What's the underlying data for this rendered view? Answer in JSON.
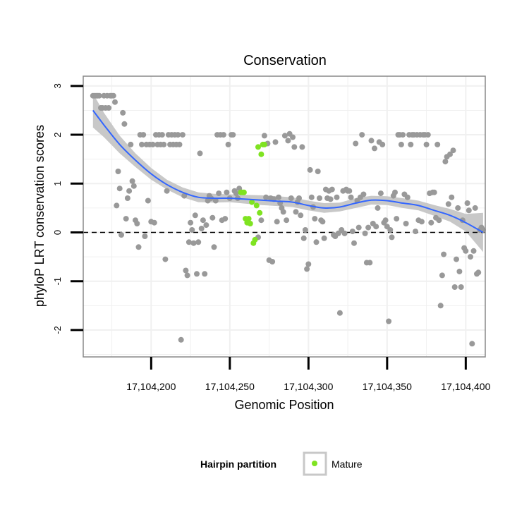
{
  "chart_data": {
    "type": "scatter",
    "title": "Conservation",
    "xlabel": "Genomic Position",
    "ylabel": "phyloP LRT conservation scores",
    "xlim": [
      17104156.8,
      17104412.4
    ],
    "ylim": [
      -2.55,
      3.2
    ],
    "x_ticks": [
      17104200,
      17104250,
      17104300,
      17104350,
      17104400
    ],
    "x_tick_labels": [
      "17,104,200",
      "17,104,250",
      "17,104,300",
      "17,104,350",
      "17,104,400"
    ],
    "y_ticks": [
      -2,
      -1,
      0,
      1,
      2,
      3
    ],
    "y_tick_labels": [
      "-2",
      "-1",
      "0",
      "1",
      "2",
      "3"
    ],
    "reference_line": {
      "y": 0,
      "style": "dashed"
    },
    "legend": {
      "title": "Hairpin partition",
      "position": "bottom",
      "entries": [
        {
          "label": "Mature",
          "color": "#7FE321"
        }
      ]
    },
    "colors": {
      "other": "#999999",
      "mature": "#7FE321",
      "smooth": "#3366FF",
      "ribbon": "#C8C8C8",
      "panel_grid": "#F0F0F0",
      "frame": "#888888"
    },
    "series": [
      {
        "name": "Other",
        "color": "#999999",
        "points": [
          [
            17104163,
            2.8
          ],
          [
            17104164,
            2.8
          ],
          [
            17104165,
            2.8
          ],
          [
            17104166,
            2.8
          ],
          [
            17104167,
            2.8
          ],
          [
            17104168,
            2.55
          ],
          [
            17104169,
            2.55
          ],
          [
            17104170,
            2.8
          ],
          [
            17104171,
            2.55
          ],
          [
            17104172,
            2.8
          ],
          [
            17104173,
            2.55
          ],
          [
            17104174,
            2.8
          ],
          [
            17104175,
            2.8
          ],
          [
            17104176,
            2.8
          ],
          [
            17104177,
            2.67
          ],
          [
            17104178,
            0.55
          ],
          [
            17104179,
            1.25
          ],
          [
            17104180,
            0.9
          ],
          [
            17104181,
            -0.05
          ],
          [
            17104182,
            2.45
          ],
          [
            17104183,
            2.22
          ],
          [
            17104184,
            0.28
          ],
          [
            17104185,
            0.7
          ],
          [
            17104186,
            0.85
          ],
          [
            17104187,
            1.8
          ],
          [
            17104188,
            1.05
          ],
          [
            17104189,
            0.95
          ],
          [
            17104190,
            0.25
          ],
          [
            17104191,
            0.18
          ],
          [
            17104192,
            -0.3
          ],
          [
            17104193,
            2.0
          ],
          [
            17104194,
            1.8
          ],
          [
            17104195,
            2.0
          ],
          [
            17104196,
            -0.08
          ],
          [
            17104197,
            1.8
          ],
          [
            17104198,
            0.65
          ],
          [
            17104199,
            1.8
          ],
          [
            17104200,
            0.22
          ],
          [
            17104201,
            1.8
          ],
          [
            17104202,
            0.2
          ],
          [
            17104203,
            2.0
          ],
          [
            17104204,
            1.8
          ],
          [
            17104205,
            2.0
          ],
          [
            17104206,
            1.8
          ],
          [
            17104207,
            2.0
          ],
          [
            17104208,
            1.8
          ],
          [
            17104209,
            -0.55
          ],
          [
            17104210,
            0.85
          ],
          [
            17104211,
            2.0
          ],
          [
            17104212,
            1.8
          ],
          [
            17104213,
            2.0
          ],
          [
            17104214,
            1.8
          ],
          [
            17104215,
            2.0
          ],
          [
            17104216,
            1.8
          ],
          [
            17104217,
            2.0
          ],
          [
            17104218,
            1.8
          ],
          [
            17104219,
            -2.2
          ],
          [
            17104220,
            2.0
          ],
          [
            17104221,
            0.75
          ],
          [
            17104222,
            -0.78
          ],
          [
            17104223,
            -0.88
          ],
          [
            17104224,
            -0.2
          ],
          [
            17104225,
            0.2
          ],
          [
            17104226,
            0.05
          ],
          [
            17104227,
            -0.22
          ],
          [
            17104228,
            0.35
          ],
          [
            17104229,
            -0.85
          ],
          [
            17104230,
            -0.2
          ],
          [
            17104231,
            1.62
          ],
          [
            17104232,
            0.08
          ],
          [
            17104233,
            0.25
          ],
          [
            17104234,
            -0.85
          ],
          [
            17104235,
            0.15
          ],
          [
            17104236,
            0.65
          ],
          [
            17104237,
            0.75
          ],
          [
            17104238,
            0.7
          ],
          [
            17104239,
            0.3
          ],
          [
            17104240,
            -0.3
          ],
          [
            17104241,
            0.65
          ],
          [
            17104242,
            2.0
          ],
          [
            17104243,
            0.8
          ],
          [
            17104244,
            2.0
          ],
          [
            17104245,
            0.25
          ],
          [
            17104246,
            2.0
          ],
          [
            17104247,
            0.28
          ],
          [
            17104248,
            0.82
          ],
          [
            17104249,
            1.8
          ],
          [
            17104250,
            0.7
          ],
          [
            17104251,
            2.0
          ],
          [
            17104252,
            2.0
          ],
          [
            17104253,
            0.85
          ],
          [
            17104254,
            0.8
          ],
          [
            17104255,
            0.7
          ],
          [
            17104256,
            0.9
          ],
          [
            17104268,
            -0.1
          ],
          [
            17104270,
            0.25
          ],
          [
            17104272,
            1.98
          ],
          [
            17104273,
            0.72
          ],
          [
            17104274,
            1.82
          ],
          [
            17104275,
            -0.57
          ],
          [
            17104276,
            0.7
          ],
          [
            17104277,
            -0.6
          ],
          [
            17104278,
            0.68
          ],
          [
            17104279,
            1.85
          ],
          [
            17104280,
            0.22
          ],
          [
            17104281,
            0.72
          ],
          [
            17104282,
            0.6
          ],
          [
            17104283,
            0.5
          ],
          [
            17104284,
            0.42
          ],
          [
            17104285,
            1.98
          ],
          [
            17104286,
            0.25
          ],
          [
            17104287,
            1.88
          ],
          [
            17104288,
            2.02
          ],
          [
            17104289,
            0.7
          ],
          [
            17104290,
            1.95
          ],
          [
            17104291,
            1.75
          ],
          [
            17104292,
            0.42
          ],
          [
            17104293,
            0.62
          ],
          [
            17104294,
            0.7
          ],
          [
            17104295,
            0.35
          ],
          [
            17104296,
            1.75
          ],
          [
            17104297,
            -0.12
          ],
          [
            17104298,
            0.05
          ],
          [
            17104299,
            -0.75
          ],
          [
            17104300,
            -0.65
          ],
          [
            17104301,
            1.28
          ],
          [
            17104302,
            0.72
          ],
          [
            17104303,
            0.52
          ],
          [
            17104304,
            0.28
          ],
          [
            17104305,
            -0.2
          ],
          [
            17104306,
            1.25
          ],
          [
            17104307,
            0.7
          ],
          [
            17104308,
            0.25
          ],
          [
            17104309,
            0.22
          ],
          [
            17104310,
            -0.12
          ],
          [
            17104311,
            0.88
          ],
          [
            17104312,
            0.7
          ],
          [
            17104313,
            0.85
          ],
          [
            17104314,
            0.68
          ],
          [
            17104315,
            0.88
          ],
          [
            17104316,
            -0.05
          ],
          [
            17104317,
            -0.08
          ],
          [
            17104318,
            0.72
          ],
          [
            17104319,
            -0.02
          ],
          [
            17104320,
            -1.65
          ],
          [
            17104321,
            0.05
          ],
          [
            17104322,
            0.85
          ],
          [
            17104323,
            -0.02
          ],
          [
            17104324,
            0.88
          ],
          [
            17104325,
            0.85
          ],
          [
            17104326,
            0.85
          ],
          [
            17104327,
            0.72
          ],
          [
            17104328,
            0.02
          ],
          [
            17104329,
            -0.22
          ],
          [
            17104330,
            1.82
          ],
          [
            17104331,
            0.65
          ],
          [
            17104332,
            0.1
          ],
          [
            17104333,
            0.72
          ],
          [
            17104334,
            2.0
          ],
          [
            17104335,
            0.78
          ],
          [
            17104336,
            -0.02
          ],
          [
            17104337,
            -0.62
          ],
          [
            17104338,
            0.1
          ],
          [
            17104339,
            -0.62
          ],
          [
            17104340,
            1.88
          ],
          [
            17104341,
            0.18
          ],
          [
            17104342,
            1.72
          ],
          [
            17104343,
            0.12
          ],
          [
            17104344,
            0.5
          ],
          [
            17104345,
            1.85
          ],
          [
            17104346,
            0.8
          ],
          [
            17104347,
            1.8
          ],
          [
            17104348,
            0.2
          ],
          [
            17104349,
            0.25
          ],
          [
            17104350,
            0.12
          ],
          [
            17104351,
            -1.82
          ],
          [
            17104352,
            0.05
          ],
          [
            17104353,
            -0.1
          ],
          [
            17104354,
            0.75
          ],
          [
            17104355,
            0.82
          ],
          [
            17104356,
            0.28
          ],
          [
            17104357,
            2.0
          ],
          [
            17104358,
            2.0
          ],
          [
            17104359,
            1.8
          ],
          [
            17104360,
            2.0
          ],
          [
            17104361,
            0.78
          ],
          [
            17104362,
            0.18
          ],
          [
            17104363,
            0.72
          ],
          [
            17104364,
            2.0
          ],
          [
            17104365,
            1.8
          ],
          [
            17104366,
            2.0
          ],
          [
            17104367,
            2.0
          ],
          [
            17104368,
            0.02
          ],
          [
            17104369,
            2.0
          ],
          [
            17104370,
            0.25
          ],
          [
            17104371,
            2.0
          ],
          [
            17104372,
            0.22
          ],
          [
            17104373,
            2.0
          ],
          [
            17104374,
            2.0
          ],
          [
            17104375,
            1.8
          ],
          [
            17104376,
            2.0
          ],
          [
            17104377,
            0.8
          ],
          [
            17104378,
            0.2
          ],
          [
            17104379,
            0.82
          ],
          [
            17104380,
            0.82
          ],
          [
            17104381,
            0.3
          ],
          [
            17104382,
            1.8
          ],
          [
            17104383,
            0.25
          ],
          [
            17104384,
            -1.5
          ],
          [
            17104385,
            -0.88
          ],
          [
            17104386,
            -0.45
          ],
          [
            17104387,
            1.45
          ],
          [
            17104388,
            1.55
          ],
          [
            17104389,
            0.58
          ],
          [
            17104390,
            1.6
          ],
          [
            17104391,
            0.72
          ],
          [
            17104392,
            1.68
          ],
          [
            17104393,
            -1.12
          ],
          [
            17104394,
            -0.55
          ],
          [
            17104395,
            0.5
          ],
          [
            17104396,
            -0.8
          ],
          [
            17104397,
            -1.12
          ],
          [
            17104398,
            0.25
          ],
          [
            17104399,
            -0.32
          ],
          [
            17104400,
            -0.38
          ],
          [
            17104401,
            0.6
          ],
          [
            17104402,
            0.45
          ],
          [
            17104403,
            -0.5
          ],
          [
            17104404,
            -2.28
          ],
          [
            17104405,
            -0.38
          ],
          [
            17104406,
            0.5
          ],
          [
            17104407,
            -0.85
          ],
          [
            17104408,
            -0.82
          ],
          [
            17104409,
            0.05
          ],
          [
            17104410,
            0.1
          ],
          [
            17104411,
            0.05
          ]
        ]
      },
      {
        "name": "Mature",
        "color": "#7FE321",
        "points": [
          [
            17104257,
            0.82
          ],
          [
            17104258,
            0.82
          ],
          [
            17104259,
            0.82
          ],
          [
            17104260,
            0.28
          ],
          [
            17104261,
            0.2
          ],
          [
            17104262,
            0.28
          ],
          [
            17104263,
            0.18
          ],
          [
            17104264,
            0.62
          ],
          [
            17104265,
            -0.22
          ],
          [
            17104266,
            -0.15
          ],
          [
            17104267,
            0.55
          ],
          [
            17104268,
            1.75
          ],
          [
            17104269,
            0.4
          ],
          [
            17104270,
            1.6
          ],
          [
            17104271,
            1.8
          ],
          [
            17104272,
            1.8
          ]
        ]
      }
    ],
    "smooth_fit": {
      "color": "#3366FF",
      "x": [
        17104163,
        17104170,
        17104180,
        17104190,
        17104200,
        17104210,
        17104220,
        17104230,
        17104240,
        17104250,
        17104260,
        17104270,
        17104280,
        17104290,
        17104300,
        17104310,
        17104320,
        17104330,
        17104340,
        17104350,
        17104360,
        17104370,
        17104380,
        17104390,
        17104400,
        17104411
      ],
      "y": [
        2.5,
        2.2,
        1.8,
        1.48,
        1.2,
        0.98,
        0.82,
        0.72,
        0.7,
        0.7,
        0.68,
        0.66,
        0.64,
        0.62,
        0.55,
        0.5,
        0.52,
        0.6,
        0.66,
        0.65,
        0.6,
        0.55,
        0.45,
        0.35,
        0.2,
        0.0
      ],
      "ci_lower": [
        2.15,
        1.95,
        1.62,
        1.34,
        1.08,
        0.88,
        0.72,
        0.62,
        0.61,
        0.62,
        0.59,
        0.56,
        0.54,
        0.52,
        0.45,
        0.4,
        0.43,
        0.5,
        0.57,
        0.56,
        0.5,
        0.45,
        0.34,
        0.22,
        0.02,
        -0.4
      ],
      "ci_upper": [
        2.85,
        2.45,
        1.98,
        1.62,
        1.32,
        1.08,
        0.92,
        0.82,
        0.79,
        0.78,
        0.77,
        0.76,
        0.74,
        0.72,
        0.65,
        0.6,
        0.61,
        0.7,
        0.75,
        0.74,
        0.7,
        0.65,
        0.56,
        0.48,
        0.38,
        0.4
      ]
    }
  }
}
